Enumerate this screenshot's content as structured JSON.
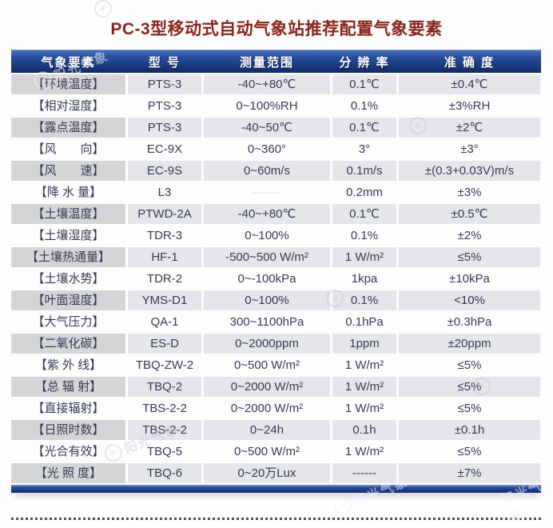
{
  "title": "PC-3型移动式自动气象站推荐配置气象要素",
  "watermark": {
    "text": "阳光气象",
    "symbol": "✳"
  },
  "colors": {
    "title_red": "#8b231d",
    "header_blue": "#16337d",
    "row_shade": "#e5e6e9",
    "row_shade_dark": "#d4d5d7",
    "cell_text": "#323c55"
  },
  "table": {
    "headers": [
      "气象要素",
      "型 号",
      "测量范围",
      "分 辨 率",
      "准 确 度"
    ],
    "light_dash_cell": {
      "row": 5,
      "col": 2
    },
    "rows": [
      [
        "【环境温度】",
        "PTS-3",
        "-40~+80℃",
        "0.1℃",
        "±0.4℃"
      ],
      [
        "【相对湿度】",
        "PTS-3",
        "0~100%RH",
        "0.1%",
        "±3%RH"
      ],
      [
        "【露点温度】",
        "PTS-3",
        "-40~50℃",
        "0.1℃",
        "±2℃"
      ],
      [
        "【风　　向】",
        "EC-9X",
        "0~360°",
        "3°",
        "±3°"
      ],
      [
        "【风　　速】",
        "EC-9S",
        "0~60m/s",
        "0.1m/s",
        "±(0.3+0.03V)m/s"
      ],
      [
        "【降 水 量】",
        "L3",
        "-------",
        "0.2mm",
        "±3%"
      ],
      [
        "【土壤温度】",
        "PTWD-2A",
        "-40~+80℃",
        "0.1℃",
        "±0.5℃"
      ],
      [
        "【土壤湿度】",
        "TDR-3",
        "0~100%",
        "0.1%",
        "±2%"
      ],
      [
        "【土壤热通量】",
        "HF-1",
        "-500~500 W/m²",
        "1 W/m²",
        "≤5%"
      ],
      [
        "【土壤水势】",
        "TDR-2",
        "0~-100kPa",
        "1kpa",
        "±10kPa"
      ],
      [
        "【叶面湿度】",
        "YMS-D1",
        "0~100%",
        "0.1%",
        "<10%"
      ],
      [
        "【大气压力】",
        "QA-1",
        "300~1100hPa",
        "0.1hPa",
        "±0.3hPa"
      ],
      [
        "【二氧化碳】",
        "ES-D",
        "0~2000ppm",
        "1ppm",
        "±20ppm"
      ],
      [
        "【紫 外 线】",
        "TBQ-ZW-2",
        "0~500 W/m²",
        "1 W/m²",
        "≤5%"
      ],
      [
        "【总 辐 射】",
        "TBQ-2",
        "0~2000 W/m²",
        "1 W/m²",
        "≤5%"
      ],
      [
        "【直接辐射】",
        "TBS-2-2",
        "0~2000 W/m²",
        "1 W/m²",
        "≤5%"
      ],
      [
        "【日照时数】",
        "TBS-2-2",
        "0~24h",
        "0.1h",
        "±0.1h"
      ],
      [
        "【光合有效】",
        "TBQ-5",
        "0~500 W/m²",
        "1 W/m²",
        "≤5%"
      ],
      [
        "【光 照 度】",
        "TBQ-6",
        "0~20万Lux",
        "------",
        "±7%"
      ]
    ]
  }
}
